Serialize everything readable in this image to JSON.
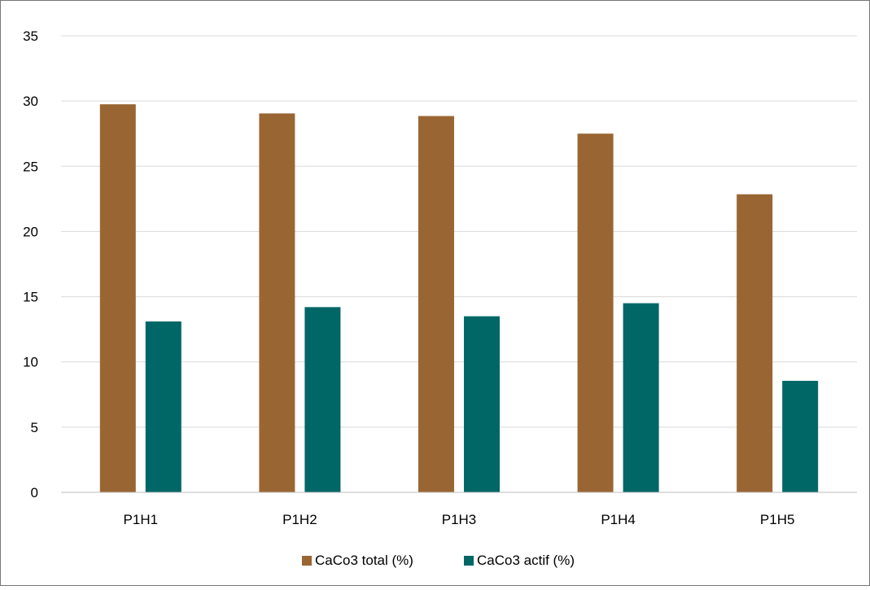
{
  "chart_data": {
    "type": "bar",
    "title": "",
    "xlabel": "",
    "ylabel": "",
    "categories": [
      "P1H1",
      "P1H2",
      "P1H3",
      "P1H4",
      "P1H5"
    ],
    "series": [
      {
        "name": "CaCo3 total (%)",
        "values": [
          29.75,
          29.05,
          28.85,
          27.5,
          22.85
        ]
      },
      {
        "name": "CaCo3 actif (%)",
        "values": [
          13.1,
          14.2,
          13.5,
          14.5,
          8.55
        ]
      }
    ],
    "ylim": [
      0,
      35
    ],
    "yticks": [
      0,
      5,
      10,
      15,
      20,
      25,
      30,
      35
    ],
    "grid": true,
    "legend_position": "bottom"
  },
  "colors": {
    "series": [
      "#996633",
      "#006666"
    ],
    "grid": "#d9d9d9",
    "axis": "#bfbfbf",
    "border": "#767676"
  }
}
